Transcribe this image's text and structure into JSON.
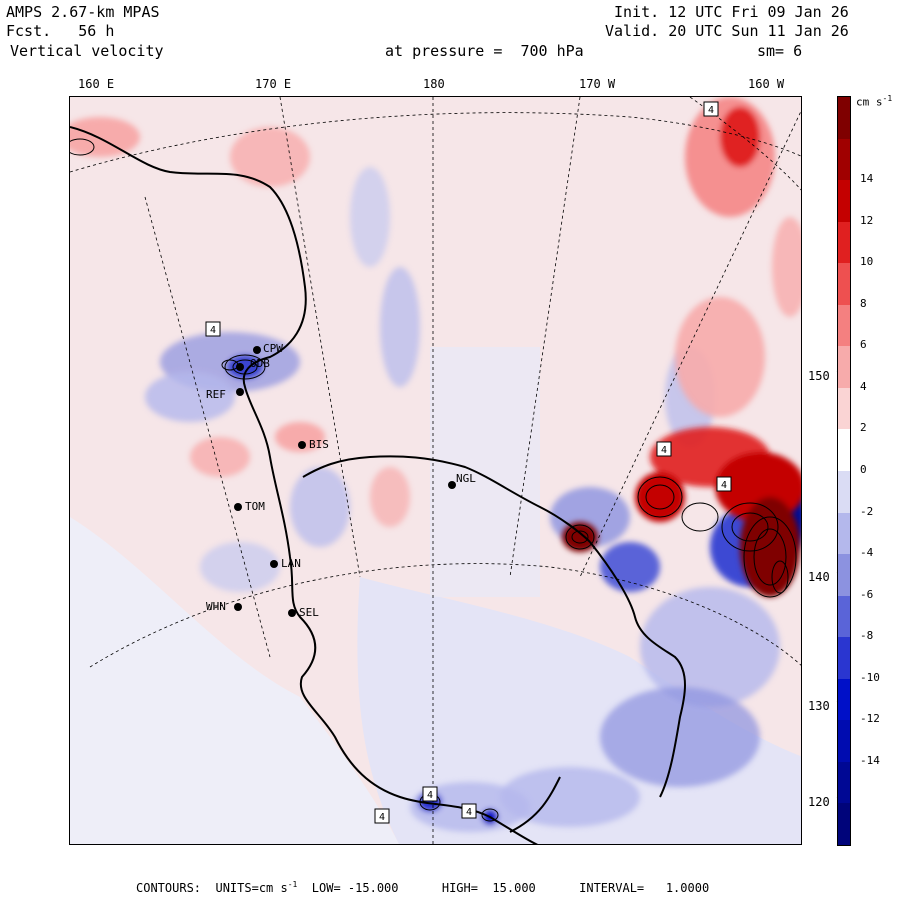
{
  "header": {
    "model": "AMPS 2.67-km MPAS",
    "forecast": "Fcst.   56 h",
    "field": "Vertical velocity",
    "init": "Init. 12 UTC Fri 09 Jan 26",
    "valid": "Valid. 20 UTC Sun 11 Jan 26",
    "level": "at pressure =  700 hPa",
    "smoothing": "sm= 6"
  },
  "longitude_labels": [
    "160 E",
    "170 E",
    "180",
    "170 W",
    "160 W"
  ],
  "latitude_labels": [
    "150 W",
    "140 W",
    "130 W",
    "120 W"
  ],
  "stations": [
    {
      "id": "CPW",
      "label": "CPW"
    },
    {
      "id": "MCM",
      "label": "ODB"
    },
    {
      "id": "REF",
      "label": "REF"
    },
    {
      "id": "BIS",
      "label": "BIS"
    },
    {
      "id": "NGL",
      "label": "NGL"
    },
    {
      "id": "TOM",
      "label": "TOM"
    },
    {
      "id": "LAN",
      "label": "LAN"
    },
    {
      "id": "WHN",
      "label": "WHN"
    },
    {
      "id": "SEL",
      "label": "SEL"
    }
  ],
  "box_labels": [
    "4",
    "4",
    "4",
    "4",
    "4",
    "4",
    "4"
  ],
  "colorbar": {
    "units": "cm s",
    "units_exp": "-1",
    "ticks": [
      "14",
      "12",
      "10",
      "8",
      "6",
      "4",
      "2",
      "0",
      "-2",
      "-4",
      "-6",
      "-8",
      "-10",
      "-12",
      "-14"
    ],
    "colors": [
      "#7f0000",
      "#a00000",
      "#c40000",
      "#e02020",
      "#ee5050",
      "#f48080",
      "#f7abab",
      "#fad4d4",
      "#ffffff",
      "#dadcf4",
      "#b4b8ec",
      "#8c92e0",
      "#5a64d8",
      "#2a36d0",
      "#0010c8",
      "#000cb0",
      "#000894",
      "#00047a"
    ]
  },
  "footer": {
    "text": "CONTOURS:  UNITS=cm s",
    "exp": "-1",
    "rest": "  LOW= -15.000      HIGH=  15.000      INTERVAL=   1.0000"
  }
}
